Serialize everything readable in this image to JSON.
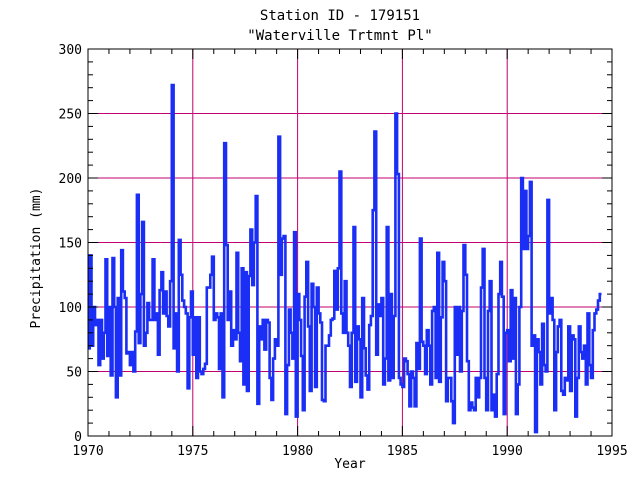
{
  "chart_data": {
    "type": "line",
    "title": "Station ID - 179151",
    "subtitle": "\"Waterville Trtmnt Pl\"",
    "xlabel": "Year",
    "ylabel": "Precipitation (mm)",
    "xlim": [
      1970,
      1995
    ],
    "ylim": [
      0,
      300
    ],
    "xticks": [
      1970,
      1975,
      1980,
      1985,
      1990,
      1995
    ],
    "yticks": [
      0,
      50,
      100,
      150,
      200,
      250,
      300
    ],
    "vertical_reference_lines": [
      1975,
      1980,
      1985,
      1990
    ],
    "horizontal_reference_lines": [
      50,
      100,
      150,
      200,
      250
    ],
    "series": [
      {
        "step": "post",
        "x_start": 1970.0,
        "x_step": 0.08333,
        "values": [
          68,
          140,
          70,
          100,
          86,
          90,
          55,
          90,
          60,
          80,
          137,
          62,
          100,
          47,
          138,
          100,
          30,
          107,
          47,
          144,
          112,
          107,
          64,
          65,
          55,
          65,
          50,
          81,
          187,
          72,
          110,
          166,
          70,
          80,
          103,
          90,
          90,
          137,
          90,
          95,
          63,
          113,
          127,
          95,
          112,
          93,
          85,
          120,
          272,
          68,
          95,
          50,
          152,
          125,
          105,
          100,
          95,
          37,
          92,
          112,
          63,
          92,
          45,
          92,
          50,
          48,
          52,
          56,
          115,
          115,
          125,
          139,
          90,
          95,
          92,
          52,
          95,
          30,
          227,
          148,
          90,
          112,
          70,
          82,
          75,
          142,
          80,
          58,
          130,
          40,
          127,
          35,
          124,
          160,
          117,
          150,
          186,
          25,
          85,
          75,
          90,
          67,
          90,
          88,
          45,
          28,
          60,
          75,
          70,
          232,
          125,
          153,
          155,
          17,
          55,
          98,
          80,
          60,
          158,
          15,
          110,
          90,
          62,
          20,
          108,
          135,
          85,
          35,
          118,
          100,
          38,
          115,
          95,
          88,
          28,
          27,
          70,
          70,
          78,
          90,
          91,
          128,
          98,
          130,
          205,
          95,
          80,
          120,
          80,
          70,
          38,
          80,
          162,
          42,
          85,
          75,
          30,
          107,
          68,
          47,
          36,
          86,
          93,
          175,
          236,
          63,
          102,
          93,
          107,
          40,
          60,
          162,
          43,
          110,
          45,
          93,
          250,
          203,
          45,
          40,
          38,
          60,
          58,
          48,
          23,
          50,
          45,
          23,
          72,
          52,
          153,
          73,
          70,
          48,
          82,
          70,
          40,
          97,
          100,
          45,
          142,
          42,
          92,
          135,
          120,
          27,
          45,
          45,
          27,
          10,
          100,
          63,
          100,
          50,
          97,
          148,
          125,
          58,
          20,
          26,
          22,
          20,
          45,
          30,
          45,
          115,
          145,
          45,
          20,
          97,
          120,
          20,
          32,
          15,
          48,
          110,
          135,
          108,
          17,
          80,
          82,
          58,
          113,
          60,
          107,
          17,
          40,
          100,
          200,
          145,
          190,
          145,
          155,
          197,
          70,
          78,
          3,
          75,
          65,
          40,
          87,
          55,
          50,
          183,
          95,
          107,
          90,
          20,
          65,
          85,
          90,
          35,
          32,
          45,
          43,
          85,
          35,
          78,
          75,
          15,
          45,
          85,
          65,
          60,
          70,
          40,
          95,
          55,
          45,
          82,
          95,
          98,
          105,
          110
        ]
      }
    ],
    "colors": {
      "series": "#1a2ef5",
      "grid": "#c0006e",
      "axes": "#000000",
      "background": "#ffffff"
    },
    "grid": true
  }
}
